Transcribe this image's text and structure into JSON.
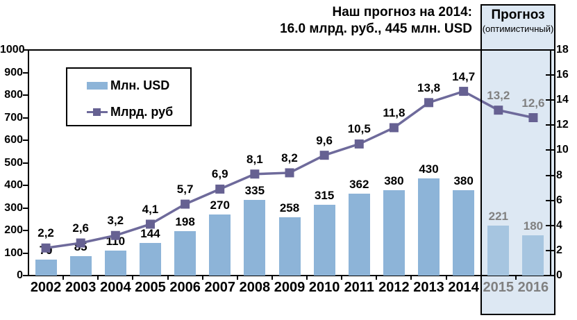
{
  "title": {
    "line1": "Наш прогноз на 2014:",
    "line2": "16.0 млрд. руб., 445 млн. USD"
  },
  "forecast_box": {
    "title": "Прогноз",
    "subtitle": "(оптимистичный)"
  },
  "legend": [
    {
      "label": "Млн. USD",
      "swatch": "bar-swatch-icon"
    },
    {
      "label": "Млрд. руб",
      "swatch": "line-swatch-icon"
    }
  ],
  "chart_data": {
    "type": "combo",
    "categories": [
      "2002",
      "2003",
      "2004",
      "2005",
      "2006",
      "2007",
      "2008",
      "2009",
      "2010",
      "2011",
      "2012",
      "2013",
      "2014",
      "2015",
      "2016"
    ],
    "series": [
      {
        "name": "Млн. USD",
        "type": "bar",
        "axis": "left",
        "values": [
          70,
          85,
          110,
          144,
          198,
          270,
          335,
          258,
          315,
          362,
          380,
          430,
          380,
          221,
          180
        ],
        "labels": [
          "70",
          "85",
          "110",
          "144",
          "198",
          "270",
          "335",
          "258",
          "315",
          "362",
          "380",
          "430",
          "380",
          "221",
          "180"
        ]
      },
      {
        "name": "Млрд. руб",
        "type": "line",
        "axis": "right",
        "values": [
          2.2,
          2.6,
          3.2,
          4.1,
          5.7,
          6.9,
          8.1,
          8.2,
          9.6,
          10.5,
          11.8,
          13.8,
          14.7,
          13.2,
          12.6
        ],
        "labels": [
          "2,2",
          "2,6",
          "3,2",
          "4,1",
          "5,7",
          "6,9",
          "8,1",
          "8,2",
          "9,6",
          "10,5",
          "11,8",
          "13,8",
          "14,7",
          "13,2",
          "12,6"
        ]
      }
    ],
    "left_axis": {
      "min": 0,
      "max": 1000,
      "step": 100
    },
    "right_axis": {
      "min": 0,
      "max": 18,
      "step": 2
    },
    "forecast_from_index": 13,
    "grid": false,
    "legend_position": "top-left-inside",
    "colors": {
      "bar": "#8db4d8",
      "bar_forecast": "#a6c5e0",
      "line": "#6e6a9b",
      "marker": "#666192",
      "forecast_bg": "#dde8f3",
      "forecast_text": "#808080",
      "axis": "#000000"
    }
  }
}
